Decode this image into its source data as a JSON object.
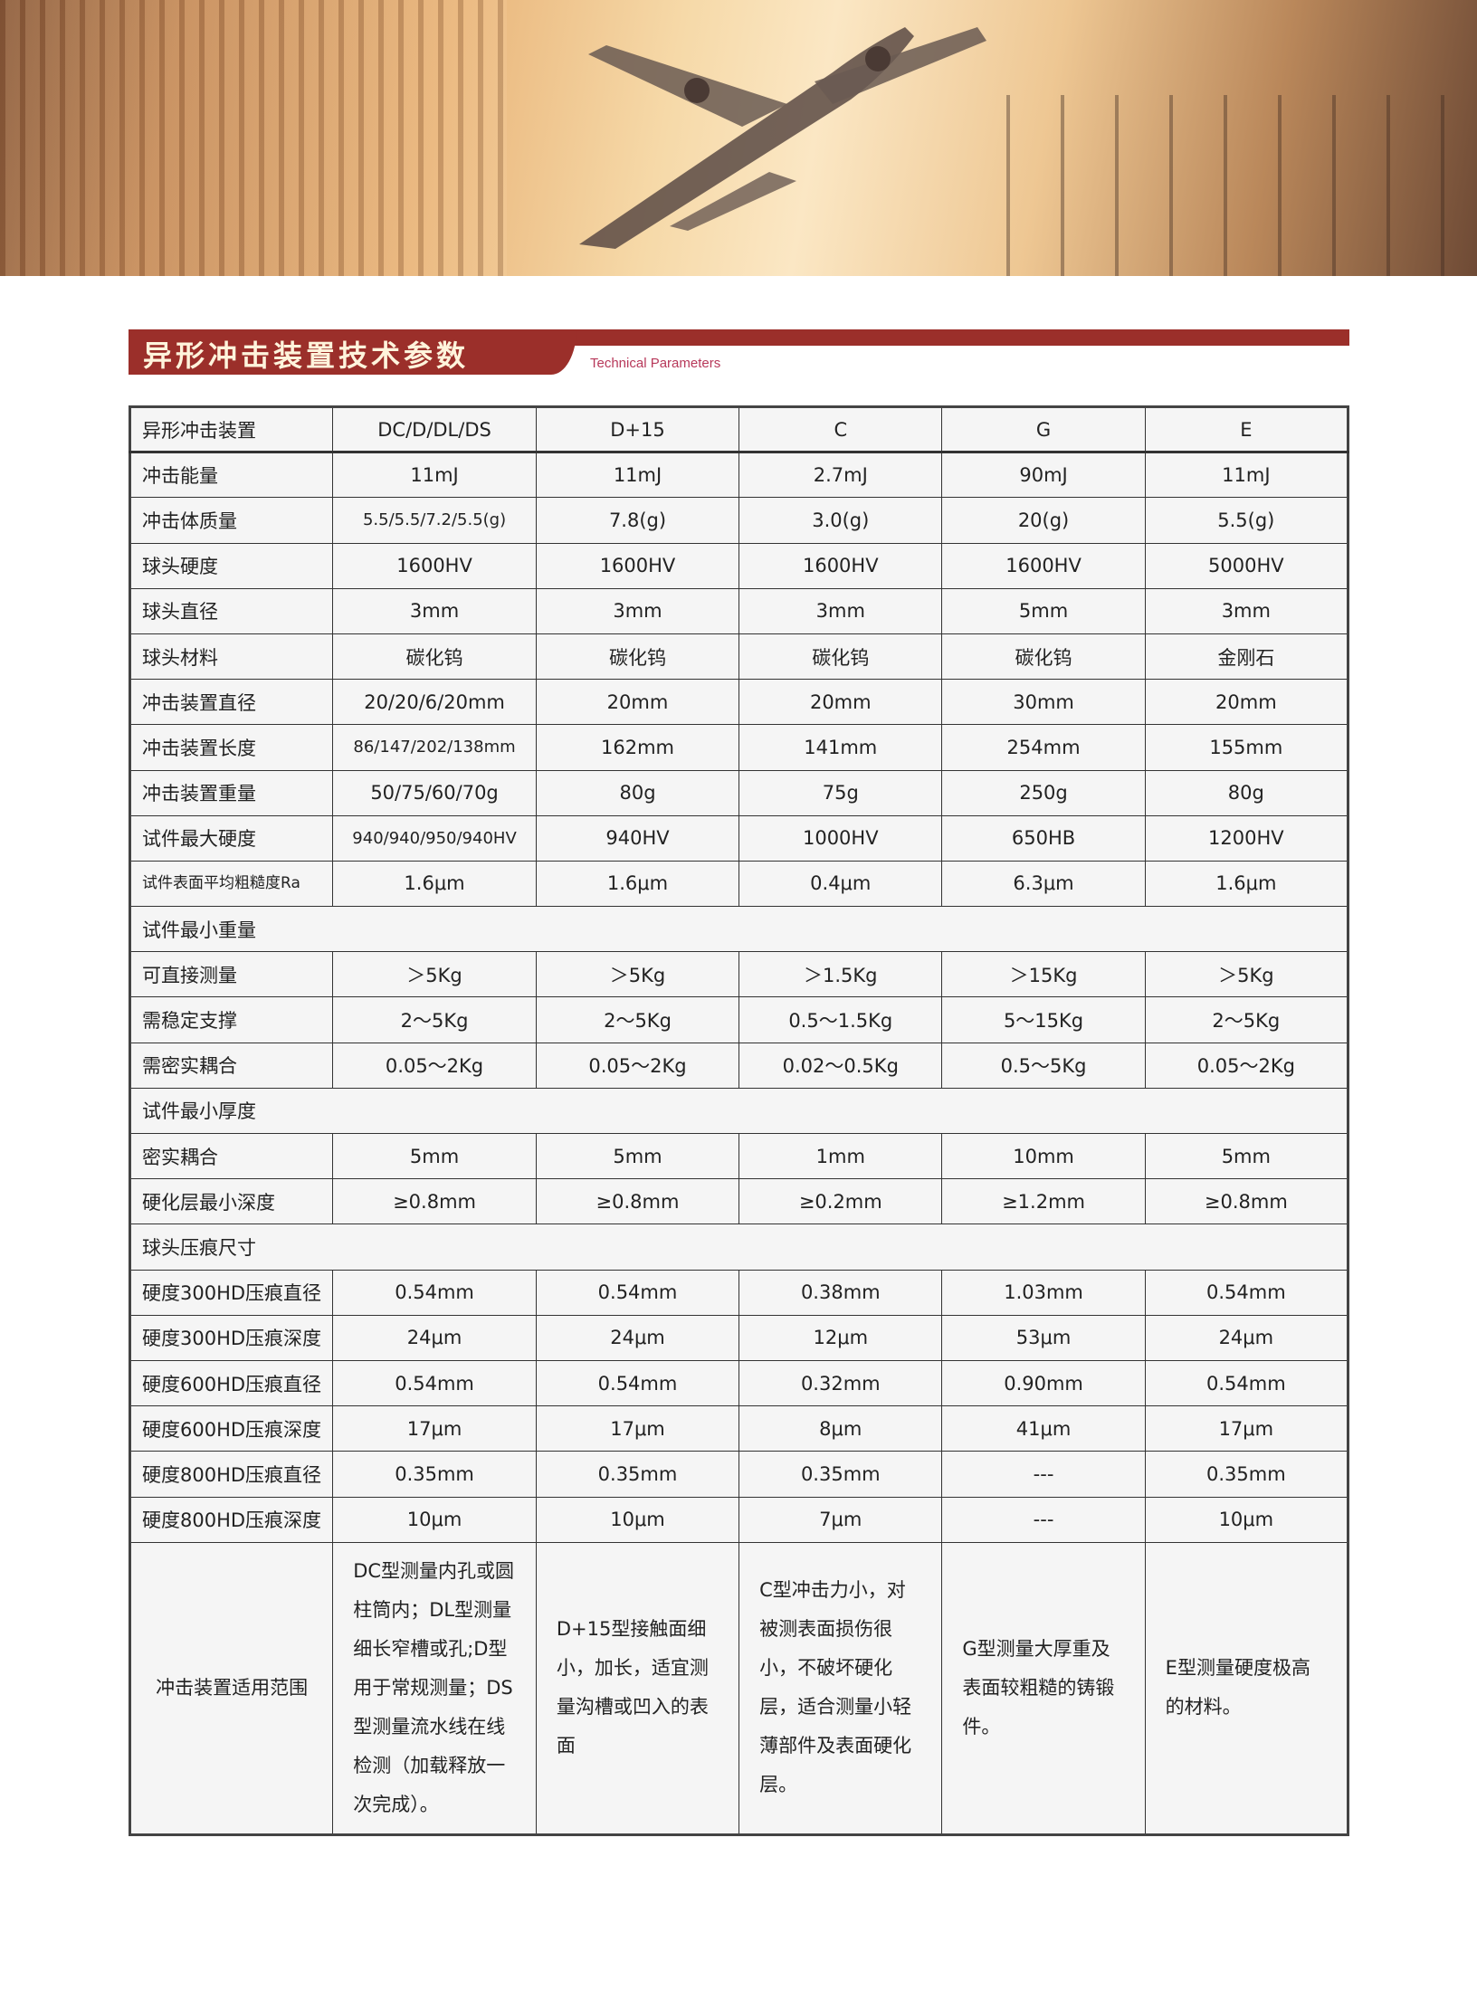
{
  "title": {
    "zh": "异形冲击装置技术参数",
    "en": "Technical Parameters"
  },
  "header": [
    "异形冲击装置",
    "DC/D/DL/DS",
    "D+15",
    "C",
    "G",
    "E"
  ],
  "rows": [
    {
      "label": "冲击能量",
      "values": [
        "11mJ",
        "11mJ",
        "2.7mJ",
        "90mJ",
        "11mJ"
      ]
    },
    {
      "label": "冲击体质量",
      "values": [
        "5.5/5.5/7.2/5.5(g)",
        "7.8(g)",
        "3.0(g)",
        "20(g)",
        "5.5(g)"
      ]
    },
    {
      "label": "球头硬度",
      "values": [
        "1600HV",
        "1600HV",
        "1600HV",
        "1600HV",
        "5000HV"
      ]
    },
    {
      "label": "球头直径",
      "values": [
        "3mm",
        "3mm",
        "3mm",
        "5mm",
        "3mm"
      ]
    },
    {
      "label": "球头材料",
      "values": [
        "碳化钨",
        "碳化钨",
        "碳化钨",
        "碳化钨",
        "金刚石"
      ]
    },
    {
      "label": "冲击装置直径",
      "values": [
        "20/20/6/20mm",
        "20mm",
        "20mm",
        "30mm",
        "20mm"
      ]
    },
    {
      "label": "冲击装置长度",
      "values": [
        "86/147/202/138mm",
        "162mm",
        "141mm",
        "254mm",
        "155mm"
      ]
    },
    {
      "label": "冲击装置重量",
      "values": [
        "50/75/60/70g",
        "80g",
        "75g",
        "250g",
        "80g"
      ]
    },
    {
      "label": "试件最大硬度",
      "values": [
        "940/940/950/940HV",
        "940HV",
        "1000HV",
        "650HB",
        "1200HV"
      ]
    },
    {
      "label": "试件表面平均粗糙度Ra",
      "values": [
        "1.6μm",
        "1.6μm",
        "0.4μm",
        "6.3μm",
        "1.6μm"
      ]
    },
    {
      "section": "试件最小重量"
    },
    {
      "label": "可直接测量",
      "values": [
        "＞5Kg",
        "＞5Kg",
        "＞1.5Kg",
        "＞15Kg",
        "＞5Kg"
      ]
    },
    {
      "label": "需稳定支撑",
      "values": [
        "2～5Kg",
        "2～5Kg",
        "0.5～1.5Kg",
        "5～15Kg",
        "2～5Kg"
      ]
    },
    {
      "label": "需密实耦合",
      "values": [
        "0.05～2Kg",
        "0.05～2Kg",
        "0.02～0.5Kg",
        "0.5～5Kg",
        "0.05～2Kg"
      ]
    },
    {
      "section": "试件最小厚度"
    },
    {
      "label": "密实耦合",
      "values": [
        "5mm",
        "5mm",
        "1mm",
        "10mm",
        "5mm"
      ]
    },
    {
      "label": "硬化层最小深度",
      "values": [
        "≥0.8mm",
        "≥0.8mm",
        "≥0.2mm",
        "≥1.2mm",
        "≥0.8mm"
      ]
    },
    {
      "section": "球头压痕尺寸"
    },
    {
      "label": "硬度300HD压痕直径",
      "values": [
        "0.54mm",
        "0.54mm",
        "0.38mm",
        "1.03mm",
        "0.54mm"
      ]
    },
    {
      "label": "硬度300HD压痕深度",
      "values": [
        "24μm",
        "24μm",
        "12μm",
        "53μm",
        "24μm"
      ]
    },
    {
      "label": "硬度600HD压痕直径",
      "values": [
        "0.54mm",
        "0.54mm",
        "0.32mm",
        "0.90mm",
        "0.54mm"
      ]
    },
    {
      "label": "硬度600HD压痕深度",
      "values": [
        "17μm",
        "17μm",
        "8μm",
        "41μm",
        "17μm"
      ]
    },
    {
      "label": "硬度800HD压痕直径",
      "values": [
        "0.35mm",
        "0.35mm",
        "0.35mm",
        "---",
        "0.35mm"
      ]
    },
    {
      "label": "硬度800HD压痕深度",
      "values": [
        "10μm",
        "10μm",
        "7μm",
        "---",
        "10μm"
      ]
    }
  ],
  "usage": {
    "label": "冲击装置适用范围",
    "values": [
      "DC型测量内孔或圆柱筒内；DL型测量细长窄槽或孔;D型用于常规测量；DS型测量流水线在线检测（加载释放一次完成）。",
      "D+15型接触面细小，加长，适宜测量沟槽或凹入的表面",
      "C型冲击力小，对被测表面损伤很小，不破坏硬化层，适合测量小轻薄部件及表面硬化层。",
      "G型测量大厚重及表面较粗糙的铸锻件。",
      "E型测量硬度极高的材料。"
    ]
  },
  "colors": {
    "accent": "#9b2f2a",
    "subtitle": "#b7385a"
  }
}
